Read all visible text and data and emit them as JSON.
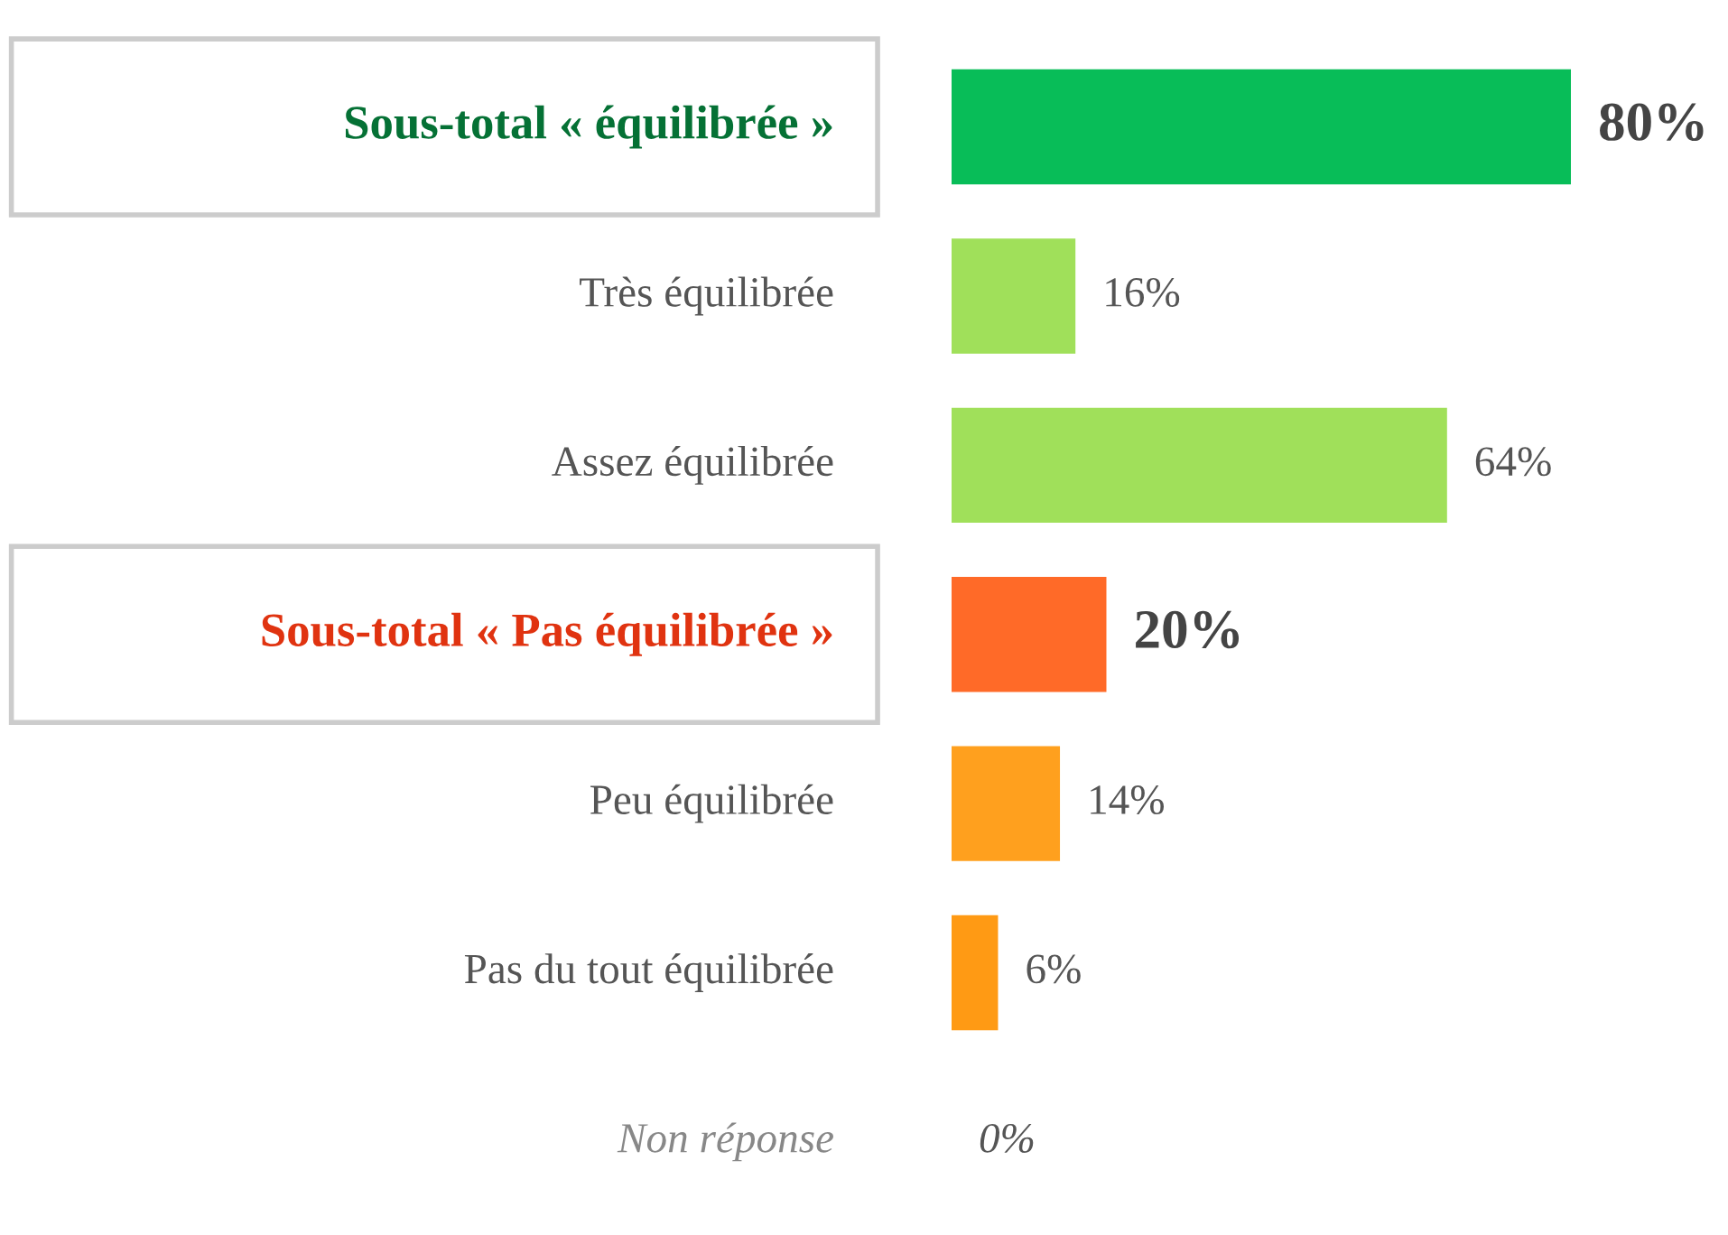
{
  "chart_data": {
    "type": "bar",
    "orientation": "horizontal",
    "categories": [
      "Sous-total « équilibrée »",
      "Très équilibrée",
      "Assez équilibrée",
      "Sous-total « Pas équilibrée »",
      "Peu équilibrée",
      "Pas du tout équilibrée",
      "Non réponse"
    ],
    "values": [
      80,
      16,
      64,
      20,
      14,
      6,
      0
    ],
    "value_labels": [
      "80%",
      "16%",
      "64%",
      "20%",
      "14%",
      "6%",
      "0%"
    ],
    "colors": [
      "#08bd58",
      "#a0e05a",
      "#a0e05a",
      "#ff6a28",
      "#ffa01e",
      "#ff9a14",
      "#ff9a14"
    ],
    "legend": false
  }
}
